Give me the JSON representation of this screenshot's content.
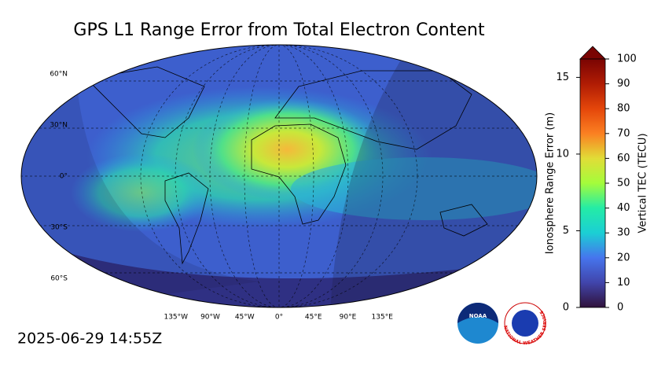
{
  "header": {
    "title": "GPS L1 Range Error from Total Electron Content",
    "timestamp": "2025-06-29 14:55Z"
  },
  "map": {
    "lat_labels": [
      {
        "value": 60,
        "label": "60°N"
      },
      {
        "value": 30,
        "label": "30°N"
      },
      {
        "value": 0,
        "label": "0°"
      },
      {
        "value": -30,
        "label": "30°S"
      },
      {
        "value": -60,
        "label": "60°S"
      }
    ],
    "lon_labels": [
      {
        "value": -135,
        "label": "135°W"
      },
      {
        "value": -90,
        "label": "90°W"
      },
      {
        "value": -45,
        "label": "45°W"
      },
      {
        "value": 0,
        "label": "0°"
      },
      {
        "value": 45,
        "label": "45°E"
      },
      {
        "value": 90,
        "label": "90°E"
      },
      {
        "value": 135,
        "label": "135°E"
      }
    ]
  },
  "colorbar": {
    "range_label": "Ionosphere Range Error (m)",
    "tec_label": "Vertical TEC (TECU)",
    "tec_lim": [
      0,
      100
    ],
    "tec_ticks": [
      0,
      10,
      20,
      30,
      40,
      50,
      60,
      70,
      80,
      90,
      100
    ],
    "range_lim": [
      0,
      16.2
    ],
    "range_ticks": [
      0,
      5,
      10,
      15
    ]
  },
  "logos": {
    "noaa": "NOAA",
    "nws": "NATIONAL WEATHER SERVICE"
  }
}
